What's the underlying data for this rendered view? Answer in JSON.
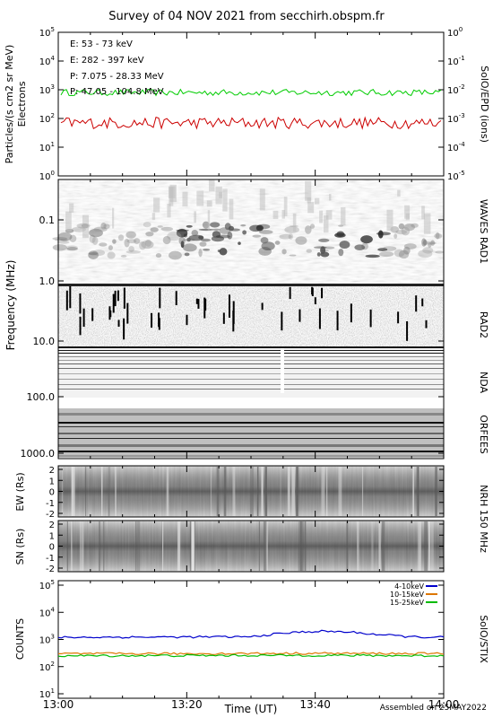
{
  "title": "Survey of 04 NOV 2021 from secchirh.obspm.fr",
  "footer": "Assembled on 25MAY2022",
  "xaxis": {
    "label": "Time (UT)",
    "ticks": [
      "13:00",
      "13:20",
      "13:40",
      "14:00"
    ],
    "range": [
      "13:00",
      "14:00"
    ]
  },
  "chart_data": [
    {
      "type": "line",
      "panel": "SolO/EPD",
      "right_label": "SolO/EPD  (ions)",
      "ylabel_left": "Particles/(s cm2 sr MeV)",
      "ylabel_left2": "Electrons",
      "yscale": "log",
      "ylim": [
        1,
        100000
      ],
      "yticks_left": [
        "10^0",
        "10^1",
        "10^2",
        "10^3",
        "10^4",
        "10^5"
      ],
      "yticks_right": [
        "10^-5",
        "10^-4",
        "10^-3",
        "10^-2",
        "10^-1",
        "10^0"
      ],
      "legend": [
        {
          "text": "E: 53 - 73 keV",
          "color": "#00cc00"
        },
        {
          "text": "E: 282 - 397 keV",
          "color": "#cc0000"
        },
        {
          "text": "P: 7.075 - 28.33 MeV",
          "color": "#000000"
        },
        {
          "text": "P: 47.05 - 104.8 MeV",
          "color": "#0000cc"
        }
      ],
      "series": [
        {
          "name": "E: 53 - 73 keV",
          "color": "#00cc00",
          "level": 800
        },
        {
          "name": "E: 282 - 397 keV",
          "color": "#cc0000",
          "level": 70
        }
      ]
    },
    {
      "type": "heatmap",
      "panel": "WAVES RAD1",
      "right_label": "WAVES RAD1",
      "ylabel": "Frequency (MHz)",
      "yticks": [
        "0.1",
        "1.0",
        "10.0",
        "100.0",
        "1000.0"
      ]
    },
    {
      "type": "heatmap",
      "panel": "RAD2",
      "right_label": "RAD2"
    },
    {
      "type": "heatmap",
      "panel": "NDA",
      "right_label": "NDA"
    },
    {
      "type": "heatmap",
      "panel": "ORFEES",
      "right_label": "ORFEES"
    },
    {
      "type": "heatmap",
      "panel": "NRH 150 MHz EW",
      "right_label": "NRH  150  MHz",
      "ylabel": "EW (Rs)",
      "yticks": [
        "2",
        "1",
        "0",
        "-1",
        "-2"
      ]
    },
    {
      "type": "heatmap",
      "panel": "NRH 150 MHz SN",
      "ylabel": "SN (Rs)",
      "yticks": [
        "2",
        "1",
        "0",
        "-1",
        "-2"
      ]
    },
    {
      "type": "line",
      "panel": "SolO/STIX",
      "right_label": "SolO/STIX",
      "ylabel": "COUNTS",
      "yscale": "log",
      "ylim": [
        10,
        100000
      ],
      "yticks": [
        "10^1",
        "10^2",
        "10^3",
        "10^4",
        "10^5"
      ],
      "series": [
        {
          "name": "4-10keV",
          "color": "#0000cc",
          "x": [
            0,
            30,
            34,
            38,
            41,
            45,
            50,
            55,
            60
          ],
          "values": [
            1200,
            1250,
            1600,
            1900,
            2000,
            1900,
            1500,
            1250,
            1200
          ]
        },
        {
          "name": "10-15keV",
          "color": "#dd7700",
          "x": [
            0,
            20,
            40,
            60
          ],
          "values": [
            300,
            300,
            310,
            300
          ]
        },
        {
          "name": "15-25keV",
          "color": "#00bb00",
          "x": [
            0,
            20,
            40,
            60
          ],
          "values": [
            250,
            255,
            260,
            250
          ]
        }
      ]
    }
  ]
}
